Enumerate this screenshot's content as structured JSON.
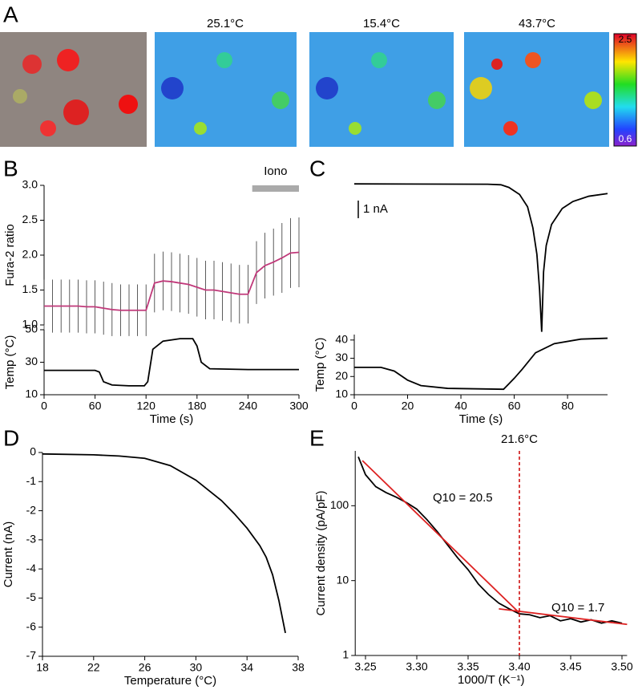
{
  "panel_a": {
    "titles": [
      "25.1°C",
      "15.4°C",
      "43.7°C"
    ],
    "colorbar_ticks": [
      2.5,
      0.6
    ]
  },
  "chart_data": [
    {
      "type": "line",
      "panel": "B",
      "ylabel": "Fura-2 ratio",
      "xlim": [
        0,
        300
      ],
      "ylim": [
        1,
        3
      ],
      "yticks": [
        {
          "value": 1,
          "label": "1.0"
        },
        1.5,
        {
          "value": 2,
          "label": "2.0"
        },
        2.5,
        {
          "value": 3,
          "label": "3.0"
        }
      ],
      "annotation": {
        "text": "Iono",
        "range": [
          245,
          300
        ],
        "color": "#aaaaaa"
      },
      "series": [
        {
          "color": "#c0397a",
          "x": [
            0,
            10,
            20,
            30,
            40,
            50,
            60,
            70,
            80,
            90,
            100,
            110,
            120,
            130,
            140,
            150,
            160,
            170,
            180,
            190,
            200,
            210,
            220,
            230,
            240,
            250,
            260,
            270,
            280,
            290,
            300
          ],
          "values": [
            1.27,
            1.27,
            1.27,
            1.27,
            1.27,
            1.26,
            1.26,
            1.24,
            1.22,
            1.21,
            1.21,
            1.21,
            1.21,
            1.6,
            1.63,
            1.62,
            1.6,
            1.58,
            1.54,
            1.5,
            1.5,
            1.48,
            1.46,
            1.44,
            1.44,
            1.75,
            1.85,
            1.9,
            1.96,
            2.03,
            2.04
          ],
          "errors": [
            0.38,
            0.38,
            0.38,
            0.38,
            0.38,
            0.38,
            0.38,
            0.38,
            0.38,
            0.37,
            0.37,
            0.37,
            0.37,
            0.42,
            0.42,
            0.42,
            0.42,
            0.42,
            0.42,
            0.42,
            0.42,
            0.42,
            0.42,
            0.42,
            0.42,
            0.45,
            0.47,
            0.48,
            0.5,
            0.5,
            0.5
          ]
        }
      ]
    },
    {
      "type": "line",
      "ylabel": "Temp (°C)",
      "xlabel": "Time (s)",
      "xlim": [
        0,
        300
      ],
      "xticks": [
        0,
        60,
        120,
        180,
        240,
        300
      ],
      "ylim": [
        10,
        50
      ],
      "yticks": [
        10,
        30,
        50
      ],
      "series": [
        {
          "color": "#000000",
          "x": [
            0,
            60,
            65,
            70,
            80,
            100,
            118,
            122,
            128,
            140,
            160,
            175,
            180,
            185,
            195,
            240,
            300
          ],
          "values": [
            25,
            25,
            24,
            18,
            16,
            15.5,
            15.5,
            18,
            38,
            43,
            44.5,
            44.5,
            40,
            30,
            26,
            25.5,
            25.5
          ]
        }
      ]
    },
    {
      "type": "line",
      "panel": "C",
      "xlim": [
        0,
        95
      ],
      "ylim": [
        -8.6,
        0.1
      ],
      "scale_bar": {
        "value": 1,
        "label": "1 nA"
      },
      "series": [
        {
          "color": "#000000",
          "x": [
            0,
            50,
            55,
            58,
            62,
            65,
            67,
            68.5,
            69.5,
            70.3,
            71,
            72,
            74,
            78,
            82,
            88,
            95
          ],
          "values": [
            0,
            -0.02,
            -0.05,
            -0.2,
            -0.6,
            -1.3,
            -2.5,
            -4,
            -6,
            -8.4,
            -5,
            -3.5,
            -2.3,
            -1.4,
            -1,
            -0.7,
            -0.55
          ]
        }
      ]
    },
    {
      "type": "line",
      "ylabel": "Temp (°C)",
      "xlabel": "Time (s)",
      "xlim": [
        0,
        95
      ],
      "xticks": [
        0,
        20,
        40,
        60,
        80
      ],
      "ylim": [
        10,
        43
      ],
      "yticks": [
        10,
        20,
        30,
        40
      ],
      "series": [
        {
          "color": "#000000",
          "x": [
            0,
            10,
            15,
            20,
            25,
            35,
            56,
            58,
            60,
            63,
            68,
            75,
            85,
            95
          ],
          "values": [
            25,
            25,
            23,
            18,
            15,
            13.5,
            13,
            16,
            19,
            24,
            33,
            38,
            40.5,
            41
          ]
        }
      ]
    },
    {
      "type": "line",
      "panel": "D",
      "ylabel": "Current (nA)",
      "xlabel": "Temperature (°C)",
      "xlim": [
        18,
        38
      ],
      "xticks": [
        18,
        22,
        26,
        30,
        34,
        38
      ],
      "ylim": [
        -7,
        0
      ],
      "yticks": [
        0,
        -1,
        -2,
        -3,
        -4,
        -5,
        -6,
        -7
      ],
      "series": [
        {
          "color": "#000000",
          "x": [
            18,
            22,
            24,
            26,
            28,
            30,
            32,
            33,
            34,
            35,
            35.5,
            36,
            36.5,
            37
          ],
          "values": [
            -0.05,
            -0.08,
            -0.12,
            -0.2,
            -0.45,
            -0.95,
            -1.65,
            -2.1,
            -2.6,
            -3.2,
            -3.6,
            -4.2,
            -5.1,
            -6.2
          ]
        }
      ]
    },
    {
      "type": "line",
      "panel": "E",
      "log_y": true,
      "ylabel": "Current density (pA/pF)",
      "xlabel": "1000/T (K⁻¹)",
      "xlim": [
        3.24,
        3.505
      ],
      "xticks": [
        3.25,
        {
          "value": 3.3,
          "label": "3.30"
        },
        3.35,
        {
          "value": 3.4,
          "label": "3.40"
        },
        3.45,
        {
          "value": 3.5,
          "label": "3.50"
        }
      ],
      "ylim": [
        1,
        540
      ],
      "yticks": [
        1,
        10,
        100
      ],
      "vline": {
        "value": 3.4,
        "label": "21.6°C",
        "color": "#cc0000"
      },
      "annotations": [
        "Q10 = 20.5",
        "Q10 = 1.7"
      ],
      "series": [
        {
          "color": "#000000",
          "x": [
            3.243,
            3.25,
            3.26,
            3.27,
            3.28,
            3.29,
            3.3,
            3.31,
            3.32,
            3.33,
            3.34,
            3.35,
            3.36,
            3.37,
            3.38,
            3.39,
            3.4,
            3.41,
            3.42,
            3.43,
            3.44,
            3.45,
            3.46,
            3.47,
            3.48,
            3.49,
            3.5
          ],
          "values": [
            450,
            260,
            180,
            150,
            130,
            110,
            90,
            65,
            45,
            30,
            20,
            14,
            9,
            6.5,
            5,
            4.2,
            3.6,
            3.5,
            3.2,
            3.4,
            2.9,
            3.1,
            2.8,
            3,
            2.7,
            2.9,
            2.7
          ]
        },
        {
          "color": "#dd2222",
          "x": [
            3.247,
            3.4
          ],
          "values": [
            400,
            3.7
          ]
        },
        {
          "color": "#dd2222",
          "x": [
            3.38,
            3.505
          ],
          "values": [
            4.2,
            2.6
          ]
        }
      ]
    }
  ]
}
